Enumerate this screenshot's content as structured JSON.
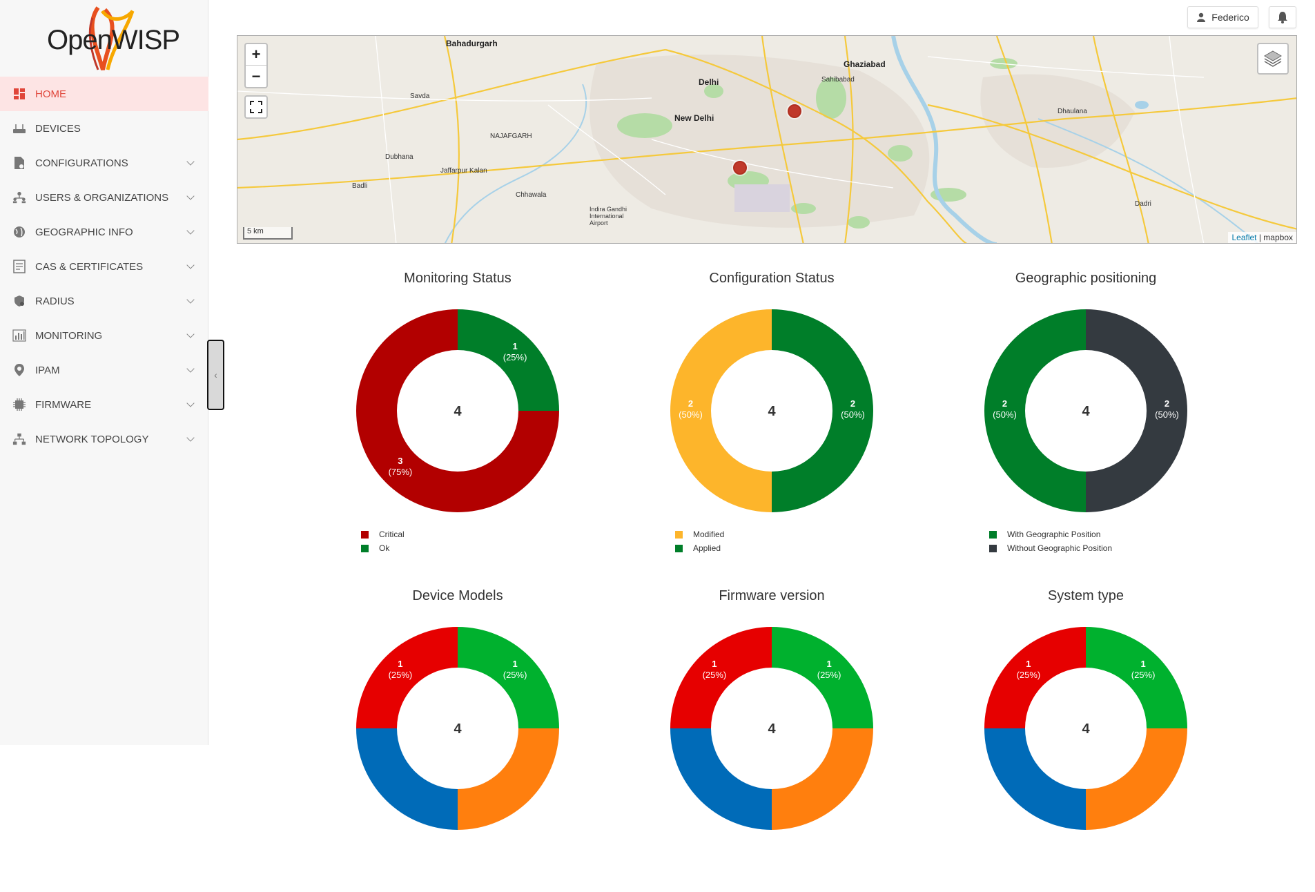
{
  "brand": {
    "logo_text": "OpenWISP"
  },
  "sidebar": {
    "items": [
      {
        "label": "HOME",
        "icon": "home-grid-icon",
        "active": true,
        "expandable": false
      },
      {
        "label": "DEVICES",
        "icon": "router-icon",
        "active": false,
        "expandable": false
      },
      {
        "label": "CONFIGURATIONS",
        "icon": "file-config-icon",
        "active": false,
        "expandable": true
      },
      {
        "label": "USERS & ORGANIZATIONS",
        "icon": "users-icon",
        "active": false,
        "expandable": true
      },
      {
        "label": "GEOGRAPHIC INFO",
        "icon": "globe-icon",
        "active": false,
        "expandable": true
      },
      {
        "label": "CAS & CERTIFICATES",
        "icon": "certificate-icon",
        "active": false,
        "expandable": true
      },
      {
        "label": "RADIUS",
        "icon": "radius-shield-icon",
        "active": false,
        "expandable": true
      },
      {
        "label": "MONITORING",
        "icon": "bar-chart-icon",
        "active": false,
        "expandable": true
      },
      {
        "label": "IPAM",
        "icon": "location-pin-icon",
        "active": false,
        "expandable": true
      },
      {
        "label": "FIRMWARE",
        "icon": "chip-icon",
        "active": false,
        "expandable": true
      },
      {
        "label": "NETWORK TOPOLOGY",
        "icon": "topology-icon",
        "active": false,
        "expandable": true
      }
    ],
    "collapse_label": "‹"
  },
  "header": {
    "user_name": "Federico"
  },
  "map": {
    "zoom_in": "+",
    "zoom_out": "−",
    "scale_label": "5 km",
    "attribution_link": "Leaflet",
    "attribution_sep": " | ",
    "attribution_provider": "mapbox",
    "labels": {
      "bahadurgarh": "Bahadurgarh",
      "delhi": "Delhi",
      "new_delhi": "New Delhi",
      "ghaziabad": "Ghaziabad",
      "dhaulana": "Dhaulana",
      "dadri": "Dadri",
      "savda": "Savda",
      "dubhana": "Dubhana",
      "jaffarpur": "Jaffarpur Kalan",
      "badli": "Badli",
      "chhawala": "Chhawala",
      "sahibabad": "Sahibabad",
      "najafgarh": "NAJAFGARH",
      "airport": "Indira Gandhi International Airport"
    },
    "colors": {
      "land": "#eeebe4",
      "water": "#a7d1e8",
      "park": "#9ed48d",
      "road_major": "#f5c93c",
      "road_minor": "#ffffff",
      "marker": "#c0392b"
    }
  },
  "charts": [
    {
      "id": "monitoring",
      "chart_data": {
        "type": "pie",
        "title": "Monitoring Status",
        "center_label": "4",
        "categories": [
          "Critical",
          "Ok"
        ],
        "values": [
          3,
          1
        ],
        "labels": [
          [
            "3",
            "(75%)"
          ],
          [
            "1",
            "(25%)"
          ]
        ],
        "colors": [
          "#b20000",
          "#007e29"
        ]
      }
    },
    {
      "id": "configuration",
      "chart_data": {
        "type": "pie",
        "title": "Configuration Status",
        "center_label": "4",
        "categories": [
          "Modified",
          "Applied"
        ],
        "values": [
          2,
          2
        ],
        "labels": [
          [
            "2",
            "(50%)"
          ],
          [
            "2",
            "(50%)"
          ]
        ],
        "colors": [
          "#fdb52b",
          "#007e29"
        ]
      }
    },
    {
      "id": "geographic",
      "chart_data": {
        "type": "pie",
        "title": "Geographic positioning",
        "center_label": "4",
        "categories": [
          "With Geographic Position",
          "Without Geographic Position"
        ],
        "values": [
          2,
          2
        ],
        "labels": [
          [
            "2",
            "(50%)"
          ],
          [
            "2",
            "(50%)"
          ]
        ],
        "colors": [
          "#007e29",
          "#343a40"
        ]
      }
    },
    {
      "id": "models",
      "chart_data": {
        "type": "pie",
        "title": "Device Models",
        "center_label": "4",
        "categories": [],
        "values": [
          1,
          1,
          1,
          1
        ],
        "labels": [
          [
            "1",
            "(25%)"
          ],
          [
            "1",
            "(25%)"
          ],
          [
            "",
            ""
          ],
          [
            "",
            ""
          ]
        ],
        "colors": [
          "#e60000",
          "#00b12e",
          "#ff7f0e",
          "#006bb8"
        ]
      }
    },
    {
      "id": "firmware",
      "chart_data": {
        "type": "pie",
        "title": "Firmware version",
        "center_label": "4",
        "categories": [],
        "values": [
          1,
          1,
          1,
          1
        ],
        "labels": [
          [
            "1",
            "(25%)"
          ],
          [
            "1",
            "(25%)"
          ],
          [
            "",
            ""
          ],
          [
            "",
            ""
          ]
        ],
        "colors": [
          "#e60000",
          "#00b12e",
          "#ff7f0e",
          "#006bb8"
        ]
      }
    },
    {
      "id": "system",
      "chart_data": {
        "type": "pie",
        "title": "System type",
        "center_label": "4",
        "categories": [],
        "values": [
          1,
          1,
          1,
          1
        ],
        "labels": [
          [
            "1",
            "(25%)"
          ],
          [
            "1",
            "(25%)"
          ],
          [
            "",
            ""
          ],
          [
            "",
            ""
          ]
        ],
        "colors": [
          "#e60000",
          "#00b12e",
          "#ff7f0e",
          "#006bb8"
        ]
      }
    }
  ]
}
